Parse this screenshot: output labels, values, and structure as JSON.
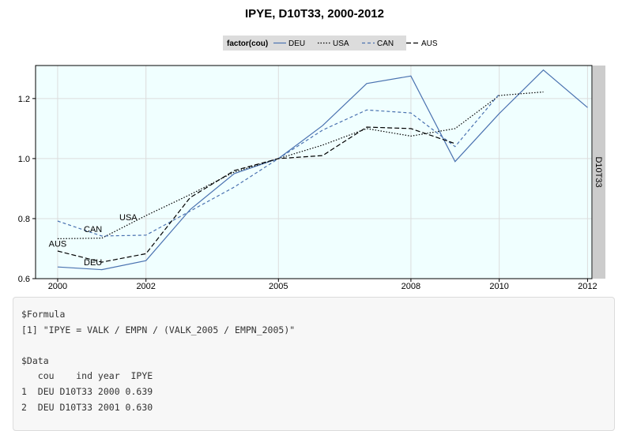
{
  "chart_data": {
    "type": "line",
    "title": "IPYE, D10T33, 2000-2012",
    "legend": {
      "title": "factor(cou)",
      "placement": "top",
      "entries": [
        "DEU",
        "USA",
        "CAN",
        "AUS"
      ]
    },
    "facet_label": "D10T33",
    "xlim": [
      1999.5,
      2012.1
    ],
    "ylim": [
      0.6,
      1.31
    ],
    "x_ticks": [
      2000,
      2002,
      2005,
      2008,
      2010,
      2012
    ],
    "y_ticks": [
      0.6,
      0.8,
      1.0,
      1.2
    ],
    "y_tick_labels": [
      "0.6",
      "0.8",
      "1.0",
      "1.2"
    ],
    "grid": true,
    "series": [
      {
        "name": "DEU",
        "color": "#4a72b0",
        "dash": "solid",
        "x": [
          2000,
          2001,
          2002,
          2003,
          2004,
          2005,
          2006,
          2007,
          2008,
          2009,
          2010,
          2011,
          2012
        ],
        "y": [
          0.639,
          0.63,
          0.66,
          0.83,
          0.95,
          1.0,
          1.11,
          1.25,
          1.275,
          0.99,
          1.15,
          1.295,
          1.17
        ]
      },
      {
        "name": "USA",
        "color": "#000000",
        "dash": "dotted",
        "x": [
          2000,
          2001,
          2002,
          2003,
          2004,
          2005,
          2006,
          2007,
          2008,
          2009,
          2010,
          2011
        ],
        "y": [
          0.733,
          0.735,
          0.81,
          0.88,
          0.955,
          1.0,
          1.045,
          1.1,
          1.075,
          1.1,
          1.21,
          1.222
        ]
      },
      {
        "name": "CAN",
        "color": "#4a72b0",
        "dash": "dashed",
        "x": [
          2000,
          2001,
          2002,
          2003,
          2004,
          2005,
          2006,
          2007,
          2008,
          2009,
          2010
        ],
        "y": [
          0.792,
          0.742,
          0.745,
          0.825,
          0.905,
          1.0,
          1.095,
          1.162,
          1.152,
          1.04,
          1.215
        ]
      },
      {
        "name": "AUS",
        "color": "#000000",
        "dash": "longdash",
        "x": [
          2000,
          2001,
          2002,
          2003,
          2004,
          2005,
          2006,
          2007,
          2008,
          2009
        ],
        "y": [
          0.692,
          0.655,
          0.683,
          0.87,
          0.96,
          1.0,
          1.01,
          1.105,
          1.1,
          1.05
        ]
      }
    ],
    "annotations": [
      {
        "text": "USA",
        "x": 2001.6,
        "y": 0.795
      },
      {
        "text": "CAN",
        "x": 2000.8,
        "y": 0.755
      },
      {
        "text": "AUS",
        "x": 2000.0,
        "y": 0.706
      },
      {
        "text": "DEU",
        "x": 2000.8,
        "y": 0.645
      }
    ]
  },
  "console": {
    "lines": [
      "$Formula",
      "[1] \"IPYE = VALK / EMPN / (VALK_2005 / EMPN_2005)\"",
      "",
      "$Data",
      "   cou    ind year  IPYE",
      "1  DEU D10T33 2000 0.639",
      "2  DEU D10T33 2001 0.630"
    ]
  }
}
